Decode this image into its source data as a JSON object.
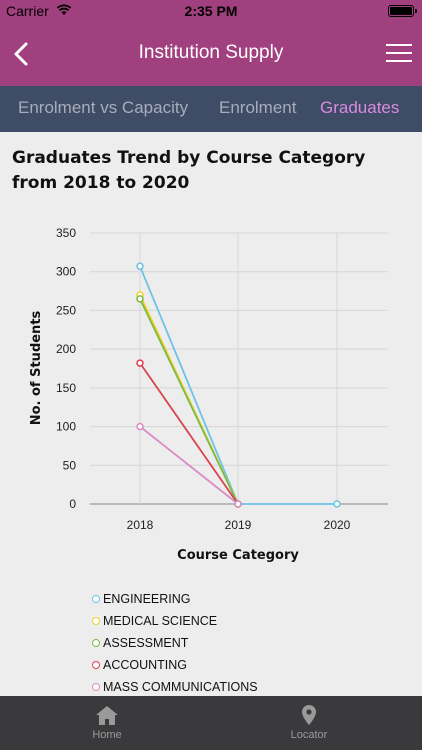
{
  "status_bar": {
    "carrier": "Carrier",
    "time": "2:35 PM"
  },
  "nav": {
    "title": "Institution Supply",
    "back_icon": "chevron-left-icon",
    "menu_icon": "hamburger-menu-icon"
  },
  "tabs": [
    {
      "label": "Enrolment vs Capacity",
      "active": false
    },
    {
      "label": "Enrolment",
      "active": false
    },
    {
      "label": "Graduates",
      "active": true
    }
  ],
  "chart_title": "Graduates Trend by Course Category from 2018 to 2020",
  "chart_data": {
    "type": "line",
    "title": "Graduates Trend by Course Category from 2018 to 2020",
    "xlabel": "Course Category",
    "ylabel": "No. of Students",
    "categories": [
      "2018",
      "2019",
      "2020"
    ],
    "ylim": [
      0,
      350
    ],
    "yticks": [
      0,
      50,
      100,
      150,
      200,
      250,
      300,
      350
    ],
    "grid": true,
    "legend_position": "bottom-left",
    "series": [
      {
        "name": "ENGINEERING",
        "color": "#6cc3e6",
        "values": [
          307,
          0,
          0
        ]
      },
      {
        "name": "MEDICAL SCIENCE",
        "color": "#f2d22c",
        "values": [
          270,
          0,
          null
        ]
      },
      {
        "name": "ASSESSMENT",
        "color": "#7dbb42",
        "values": [
          265,
          0,
          null
        ]
      },
      {
        "name": "ACCOUNTING",
        "color": "#d9434f",
        "values": [
          182,
          0,
          null
        ]
      },
      {
        "name": "MASS COMMUNICATIONS",
        "color": "#d98bc2",
        "values": [
          100,
          0,
          null
        ]
      }
    ]
  },
  "bottom_tabs": [
    {
      "label": "Home",
      "icon": "home-icon"
    },
    {
      "label": "Locator",
      "icon": "location-pin-icon"
    }
  ]
}
